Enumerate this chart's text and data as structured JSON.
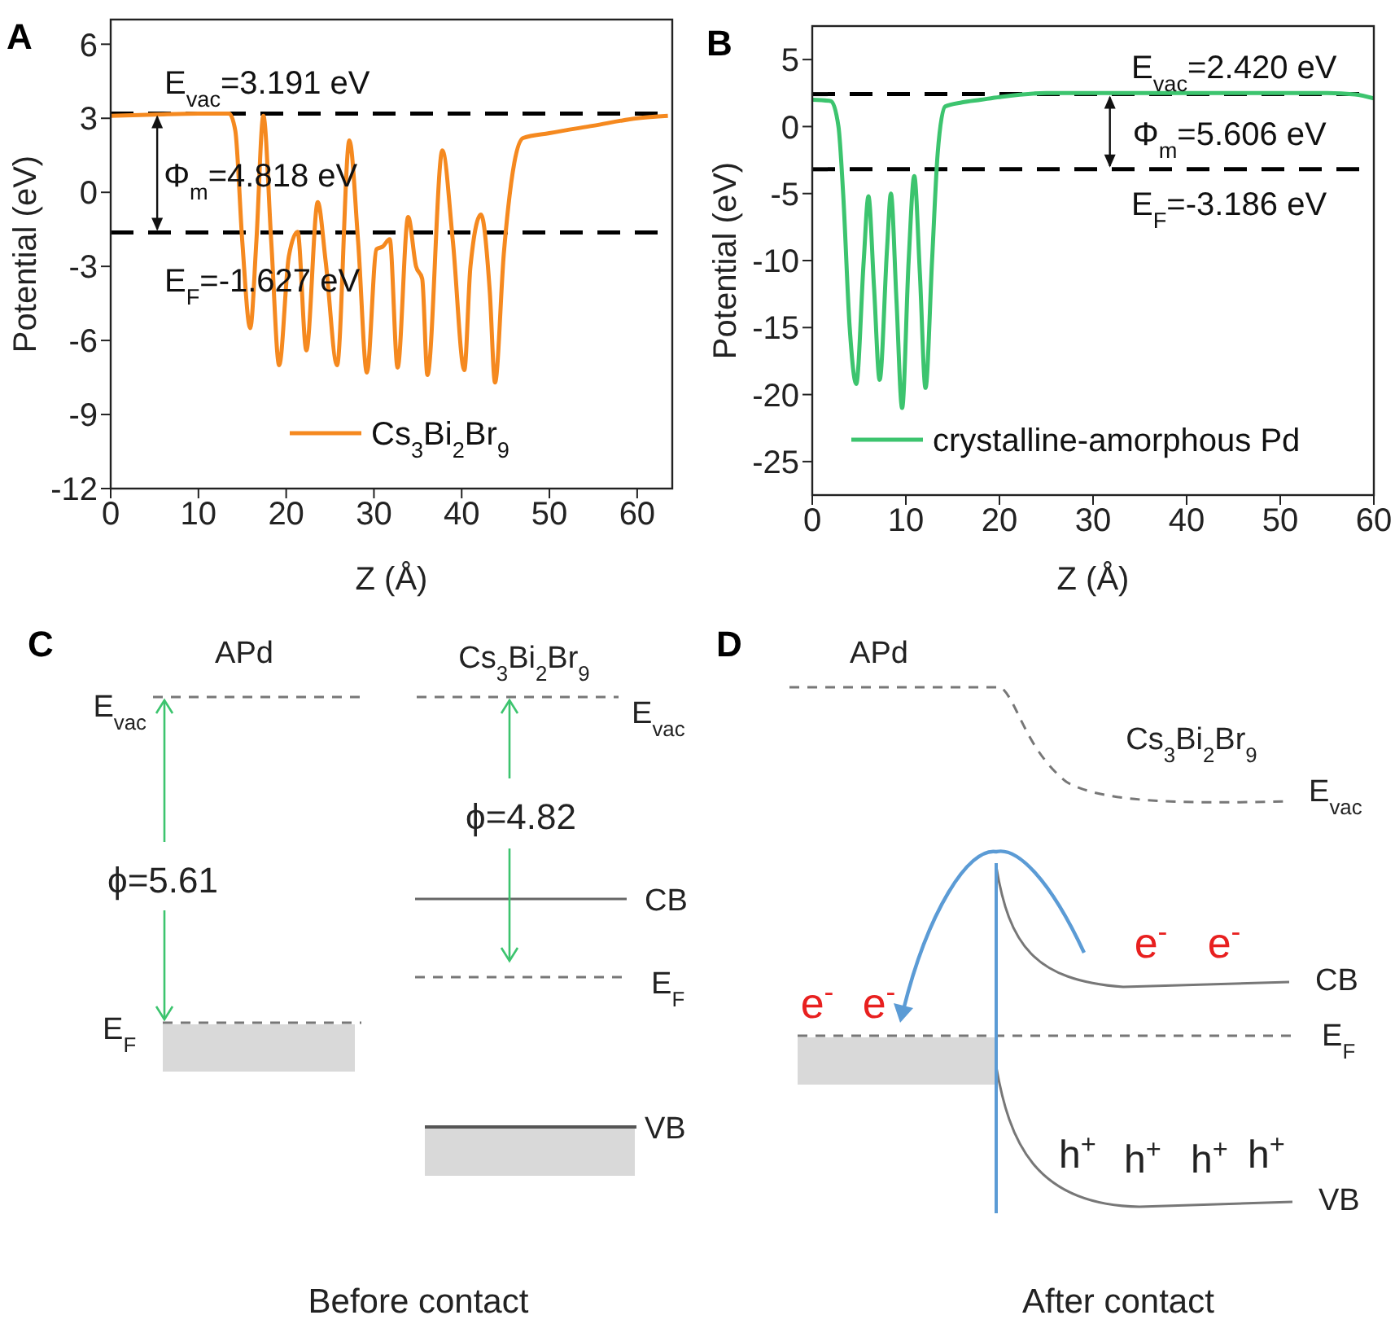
{
  "chart_data": [
    {
      "type": "line",
      "title": "A",
      "xlabel": "Z (Å)",
      "ylabel": "Potential (eV)",
      "xlim": [
        0,
        64
      ],
      "xticks": [
        0,
        10,
        20,
        30,
        40,
        50,
        60
      ],
      "ylim": [
        -12,
        7
      ],
      "yticks": [
        -12,
        -9,
        -6,
        -3,
        0,
        3,
        6
      ],
      "legend": "bottom",
      "series": [
        {
          "name": "Cs$_{3}$Bi$_{2}$Br$_{9}$",
          "color": "#f5891f",
          "x": [
            0,
            5,
            10,
            13.5,
            14.2,
            15,
            15.9,
            16.6,
            17.4,
            18.3,
            19.2,
            20.3,
            21.3,
            22.3,
            23.6,
            24.5,
            25.8,
            27.2,
            28.2,
            29.2,
            30.3,
            31,
            31.8,
            32.7,
            33.9,
            34.8,
            35.5,
            36.1,
            37.8,
            39,
            40.3,
            41,
            42.2,
            43.2,
            43.8,
            44.8,
            46,
            47,
            50,
            55,
            60,
            63.5
          ],
          "values": [
            3.1,
            3.15,
            3.19,
            3.19,
            2.5,
            -2,
            -5.5,
            -2,
            3.1,
            -2,
            -7,
            -2.6,
            -1.6,
            -6.4,
            -0.4,
            -2.8,
            -7,
            2.1,
            -2,
            -7.3,
            -2.3,
            -2.2,
            -1.9,
            -7.1,
            -1,
            -3,
            -3.5,
            -7.4,
            1.7,
            -2,
            -7.2,
            -3,
            -0.9,
            -4,
            -7.7,
            -2.5,
            1.2,
            2.2,
            2.4,
            2.7,
            3,
            3.1
          ]
        }
      ],
      "ref_lines": [
        {
          "axis": "y",
          "value": 3.191,
          "label": "E$_{vac}$=3.191 eV",
          "color": "#000000",
          "line_style": "dashed"
        },
        {
          "axis": "y",
          "value": -1.627,
          "label": "E$_{F}$=-1.627 eV",
          "color": "#000000",
          "line_style": "dashed"
        }
      ],
      "annotations": [
        "Φ$_{m}$=4.818 eV"
      ]
    },
    {
      "type": "line",
      "title": "B",
      "xlabel": "Z (Å)",
      "ylabel": "Potential (eV)",
      "xlim": [
        0,
        60
      ],
      "xticks": [
        0,
        10,
        20,
        30,
        40,
        50,
        60
      ],
      "ylim": [
        -27.5,
        7.5
      ],
      "yticks": [
        -25,
        -20,
        -15,
        -10,
        -5,
        0,
        5
      ],
      "legend": "bottom",
      "series": [
        {
          "name": "crystalline-amorphous Pd",
          "color": "#3cc46e",
          "x": [
            0,
            2,
            2.8,
            3.3,
            4,
            4.7,
            5.5,
            6,
            6.6,
            7.2,
            8,
            8.4,
            9,
            9.6,
            10.3,
            10.9,
            11.5,
            12.1,
            12.8,
            13.4,
            14.2,
            16,
            18,
            20,
            25,
            35,
            45,
            55,
            58,
            60
          ],
          "values": [
            2,
            1.9,
            0,
            -5,
            -15,
            -19.2,
            -10,
            -5.2,
            -12,
            -18.9,
            -9,
            -5,
            -13,
            -21,
            -10,
            -3.7,
            -11,
            -19.5,
            -10,
            -2,
            1.5,
            1.8,
            2,
            2.2,
            2.5,
            2.5,
            2.5,
            2.5,
            2.4,
            2.1
          ]
        }
      ],
      "ref_lines": [
        {
          "axis": "y",
          "value": 2.42,
          "label": "E$_{vac}$=2.420 eV",
          "color": "#000000",
          "line_style": "dashed"
        },
        {
          "axis": "y",
          "value": -3.186,
          "label": "E$_{F}$=-3.186 eV",
          "color": "#000000",
          "line_style": "dashed"
        }
      ],
      "annotations": [
        "Φ$_{m}$=5.606 eV"
      ]
    },
    {
      "type": "other",
      "title": "C",
      "annotations": [
        "APd",
        "Cs$_{3}$Bi$_{2}$Br$_{9}$",
        "E$_{vac}$",
        "E$_{vac}$",
        "ϕ=5.61",
        "ϕ=4.82",
        "CB",
        "E$_{F}$",
        "E$_{F}$",
        "VB",
        "Before contact"
      ]
    },
    {
      "type": "other",
      "title": "D",
      "annotations": [
        "APd",
        "Cs$_{3}$Bi$_{2}$Br$_{9}$",
        "E$_{vac}$",
        "e$^{-}$",
        "e$^{-}$",
        "e$^{-}$",
        "e$^{-}$",
        "CB",
        "E$_{F}$",
        "h$^{+}$",
        "h$^{+}$",
        "h$^{+}$",
        "h$^{+}$",
        "VB",
        "After contact"
      ]
    }
  ]
}
